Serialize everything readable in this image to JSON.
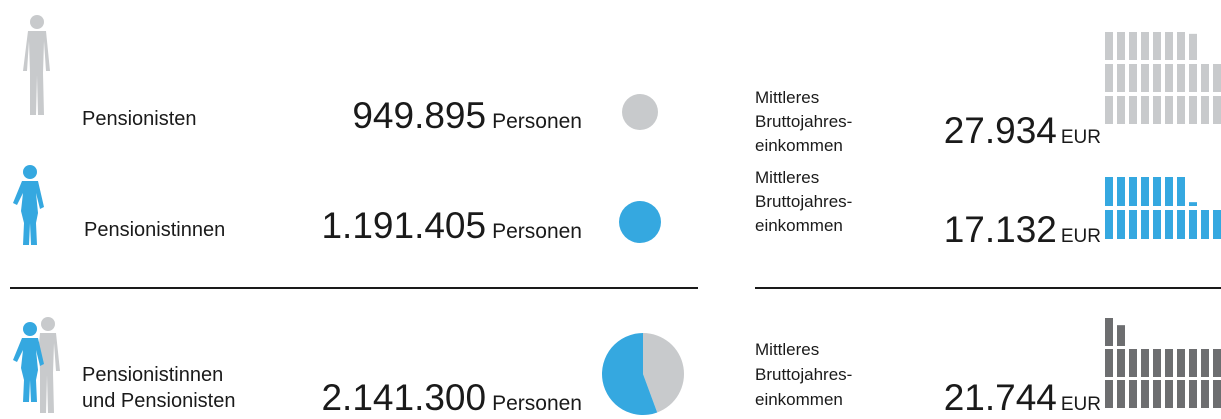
{
  "rows": [
    {
      "label": [
        "Pensionisten"
      ],
      "persons": {
        "value": 949895,
        "label": "949.895"
      },
      "persons_unit": "Personen",
      "income_label": [
        "Mittleres",
        "Bruttojahres-",
        "einkommen"
      ],
      "income": {
        "value": 27934,
        "label": "27.934"
      },
      "income_unit": "EUR",
      "color": "#c8cacc"
    },
    {
      "label": [
        "Pensionistinnen"
      ],
      "persons": {
        "value": 1191405,
        "label": "1.191.405"
      },
      "persons_unit": "Personen",
      "income_label": [
        "Mittleres",
        "Bruttojahres-",
        "einkommen"
      ],
      "income": {
        "value": 17132,
        "label": "17.132"
      },
      "income_unit": "EUR",
      "color": "#35a8e0"
    },
    {
      "label": [
        "Pensionistinnen",
        "und Pensionisten"
      ],
      "persons": {
        "value": 2141300,
        "label": "2.141.300"
      },
      "persons_unit": "Personen",
      "income_label": [
        "Mittleres",
        "Bruttojahres-",
        "einkommen"
      ],
      "income": {
        "value": 21744,
        "label": "21.744"
      },
      "income_unit": "EUR",
      "color": "#6d6e70"
    }
  ]
}
